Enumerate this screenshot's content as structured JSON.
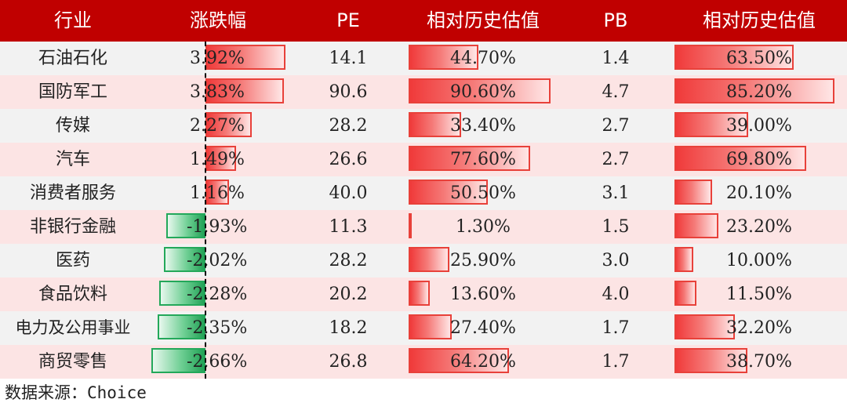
{
  "chart_data": {
    "type": "table",
    "columns": [
      "行业",
      "涨跌幅",
      "PE",
      "相对历史估值",
      "PB",
      "相对历史估值"
    ],
    "rows": [
      {
        "industry": "石油石化",
        "change": "3.92%",
        "change_value": 3.92,
        "pe": "14.1",
        "pe_rel": "44.70%",
        "pe_rel_value": 44.7,
        "pb": "1.4",
        "pb_rel": "63.50%",
        "pb_rel_value": 63.5
      },
      {
        "industry": "国防军工",
        "change": "3.83%",
        "change_value": 3.83,
        "pe": "90.6",
        "pe_rel": "90.60%",
        "pe_rel_value": 90.6,
        "pb": "4.7",
        "pb_rel": "85.20%",
        "pb_rel_value": 85.2
      },
      {
        "industry": "传媒",
        "change": "2.27%",
        "change_value": 2.27,
        "pe": "28.2",
        "pe_rel": "33.40%",
        "pe_rel_value": 33.4,
        "pb": "2.7",
        "pb_rel": "39.00%",
        "pb_rel_value": 39.0
      },
      {
        "industry": "汽车",
        "change": "1.49%",
        "change_value": 1.49,
        "pe": "26.6",
        "pe_rel": "77.60%",
        "pe_rel_value": 77.6,
        "pb": "2.7",
        "pb_rel": "69.80%",
        "pb_rel_value": 69.8
      },
      {
        "industry": "消费者服务",
        "change": "1.16%",
        "change_value": 1.16,
        "pe": "40.0",
        "pe_rel": "50.50%",
        "pe_rel_value": 50.5,
        "pb": "3.1",
        "pb_rel": "20.10%",
        "pb_rel_value": 20.1
      },
      {
        "industry": "非银行金融",
        "change": "-1.93%",
        "change_value": -1.93,
        "pe": "11.3",
        "pe_rel": "1.30%",
        "pe_rel_value": 1.3,
        "pb": "1.5",
        "pb_rel": "23.20%",
        "pb_rel_value": 23.2
      },
      {
        "industry": "医药",
        "change": "-2.02%",
        "change_value": -2.02,
        "pe": "28.2",
        "pe_rel": "25.90%",
        "pe_rel_value": 25.9,
        "pb": "3.0",
        "pb_rel": "10.00%",
        "pb_rel_value": 10.0
      },
      {
        "industry": "食品饮料",
        "change": "-2.28%",
        "change_value": -2.28,
        "pe": "20.2",
        "pe_rel": "13.60%",
        "pe_rel_value": 13.6,
        "pb": "4.0",
        "pb_rel": "11.50%",
        "pb_rel_value": 11.5
      },
      {
        "industry": "电力及公用事业",
        "change": "-2.35%",
        "change_value": -2.35,
        "pe": "18.2",
        "pe_rel": "27.40%",
        "pe_rel_value": 27.4,
        "pb": "1.7",
        "pb_rel": "32.20%",
        "pb_rel_value": 32.2
      },
      {
        "industry": "商贸零售",
        "change": "-2.66%",
        "change_value": -2.66,
        "pe": "26.8",
        "pe_rel": "64.20%",
        "pe_rel_value": 64.2,
        "pb": "1.7",
        "pb_rel": "38.70%",
        "pb_rel_value": 38.7
      }
    ],
    "colors": {
      "header": "#c00000",
      "positive_bar": "#f03a3a",
      "negative_bar": "#22a256",
      "row_odd": "#f2f2f2",
      "row_even": "#fce4e4"
    }
  },
  "source": "数据来源：Choice"
}
